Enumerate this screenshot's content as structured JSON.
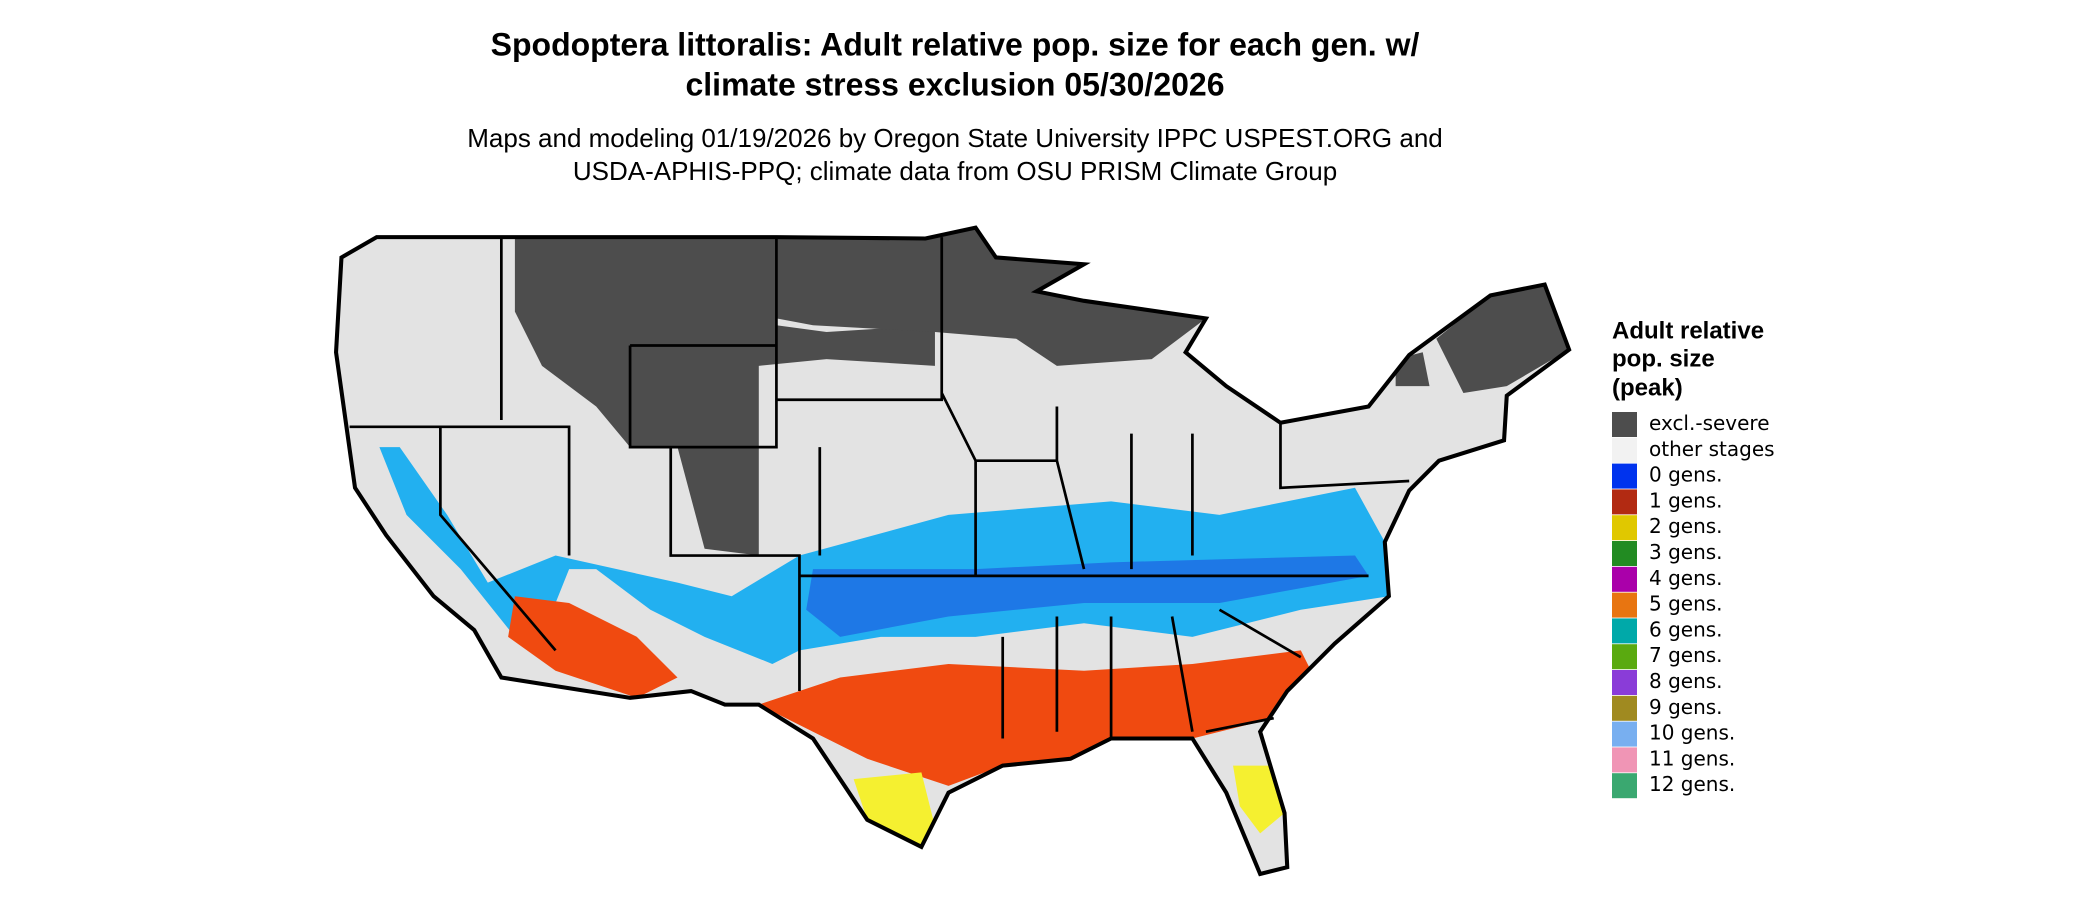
{
  "title_lines": [
    "Spodoptera littoralis: Adult relative pop. size for each gen. w/",
    "climate stress exclusion 05/30/2026"
  ],
  "subtitle_lines": [
    "Maps and modeling 01/19/2026 by Oregon State University IPPC USPEST.ORG and",
    "USDA-APHIS-PPQ; climate data from OSU PRISM Climate Group"
  ],
  "legend": {
    "title_lines": [
      "Adult relative",
      "pop. size",
      "(peak)"
    ],
    "items": [
      {
        "name": "excl.-severe",
        "color": "#4d4d4d"
      },
      {
        "name": "other stages",
        "color": "#f2f2f2"
      },
      {
        "name": "0 gens.",
        "color": "#0033ee"
      },
      {
        "name": "1 gens.",
        "color": "#b22a12"
      },
      {
        "name": "2 gens.",
        "color": "#e0c800"
      },
      {
        "name": "3 gens.",
        "color": "#228b22"
      },
      {
        "name": "4 gens.",
        "color": "#aa00aa"
      },
      {
        "name": "5 gens.",
        "color": "#e87511"
      },
      {
        "name": "6 gens.",
        "color": "#00a9a9"
      },
      {
        "name": "7 gens.",
        "color": "#5aaa10"
      },
      {
        "name": "8 gens.",
        "color": "#8a3cd8"
      },
      {
        "name": "9 gens.",
        "color": "#a08a20"
      },
      {
        "name": "10 gens.",
        "color": "#78aff0"
      },
      {
        "name": "11 gens.",
        "color": "#f095b5"
      },
      {
        "name": "12 gens.",
        "color": "#3aa870"
      }
    ]
  }
}
